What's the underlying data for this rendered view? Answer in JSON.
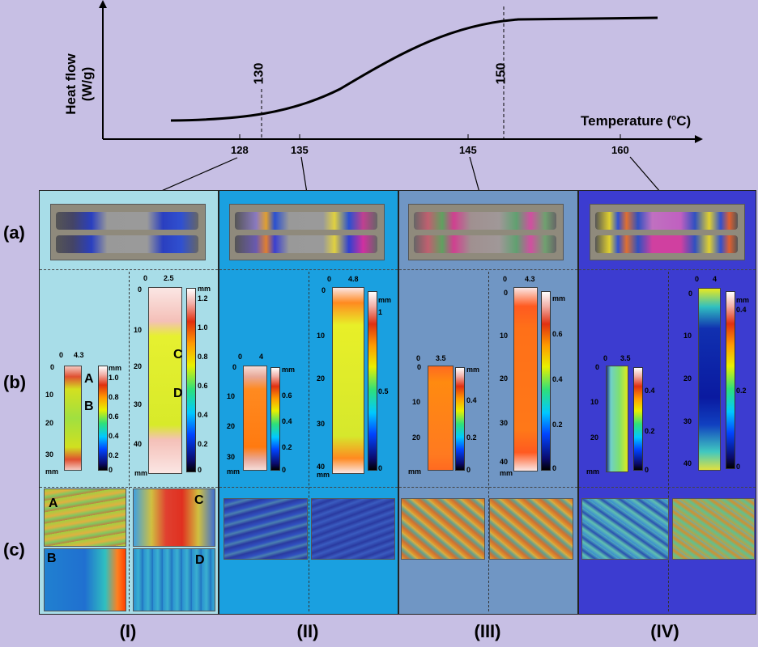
{
  "dsc": {
    "ylabel": "Heat flow (W/g)",
    "xlabel": "Temperature (",
    "xlabel_sup": "o",
    "xlabel_end": "C)",
    "marker_130": "130",
    "marker_150": "150",
    "axis_ticks": [
      "128",
      "135",
      "145",
      "160"
    ]
  },
  "rows": {
    "a": "(a)",
    "b": "(b)",
    "c": "(c)"
  },
  "stages": [
    "(I)",
    "(II)",
    "(III)",
    "(IV)"
  ],
  "dic": {
    "unit": "mm",
    "p1": {
      "w1": "4.3",
      "w2": "2.5",
      "y1": [
        "0",
        "10",
        "20",
        "30"
      ],
      "y2": [
        "0",
        "10",
        "20",
        "30",
        "40"
      ],
      "c1": [
        "1.0",
        "0.8",
        "0.6",
        "0.4",
        "0.2",
        "0"
      ],
      "c2": [
        "1.2",
        "1.0",
        "0.8",
        "0.6",
        "0.4",
        "0.2",
        "0"
      ]
    },
    "p2": {
      "w1": "4",
      "w2": "4.8",
      "y1": [
        "0",
        "10",
        "20",
        "30"
      ],
      "y2": [
        "0",
        "10",
        "20",
        "30",
        "40"
      ],
      "c1": [
        "0.6",
        "0.4",
        "0.2",
        "0"
      ],
      "c2": [
        "1",
        "0.5",
        "0"
      ]
    },
    "p3": {
      "w1": "3.5",
      "w2": "4.3",
      "y1": [
        "0",
        "10",
        "20"
      ],
      "y2": [
        "0",
        "10",
        "20",
        "30",
        "40"
      ],
      "c1": [
        "0.4",
        "0.2",
        "0"
      ],
      "c2": [
        "0.6",
        "0.4",
        "0.2",
        "0"
      ]
    },
    "p4": {
      "w1": "3.5",
      "w2": "4",
      "y1": [
        "0",
        "10",
        "20"
      ],
      "y2": [
        "0",
        "10",
        "20",
        "30",
        "40"
      ],
      "c1": [
        "0.4",
        "0.2",
        "0"
      ],
      "c2": [
        "0.4",
        "0.2",
        "0"
      ]
    }
  },
  "points": [
    "A",
    "B",
    "C",
    "D"
  ],
  "colors": {
    "p1": "#a8dde8",
    "p2": "#1aa0e0",
    "p3": "#7096c4",
    "p4": "#3c3cd0"
  }
}
